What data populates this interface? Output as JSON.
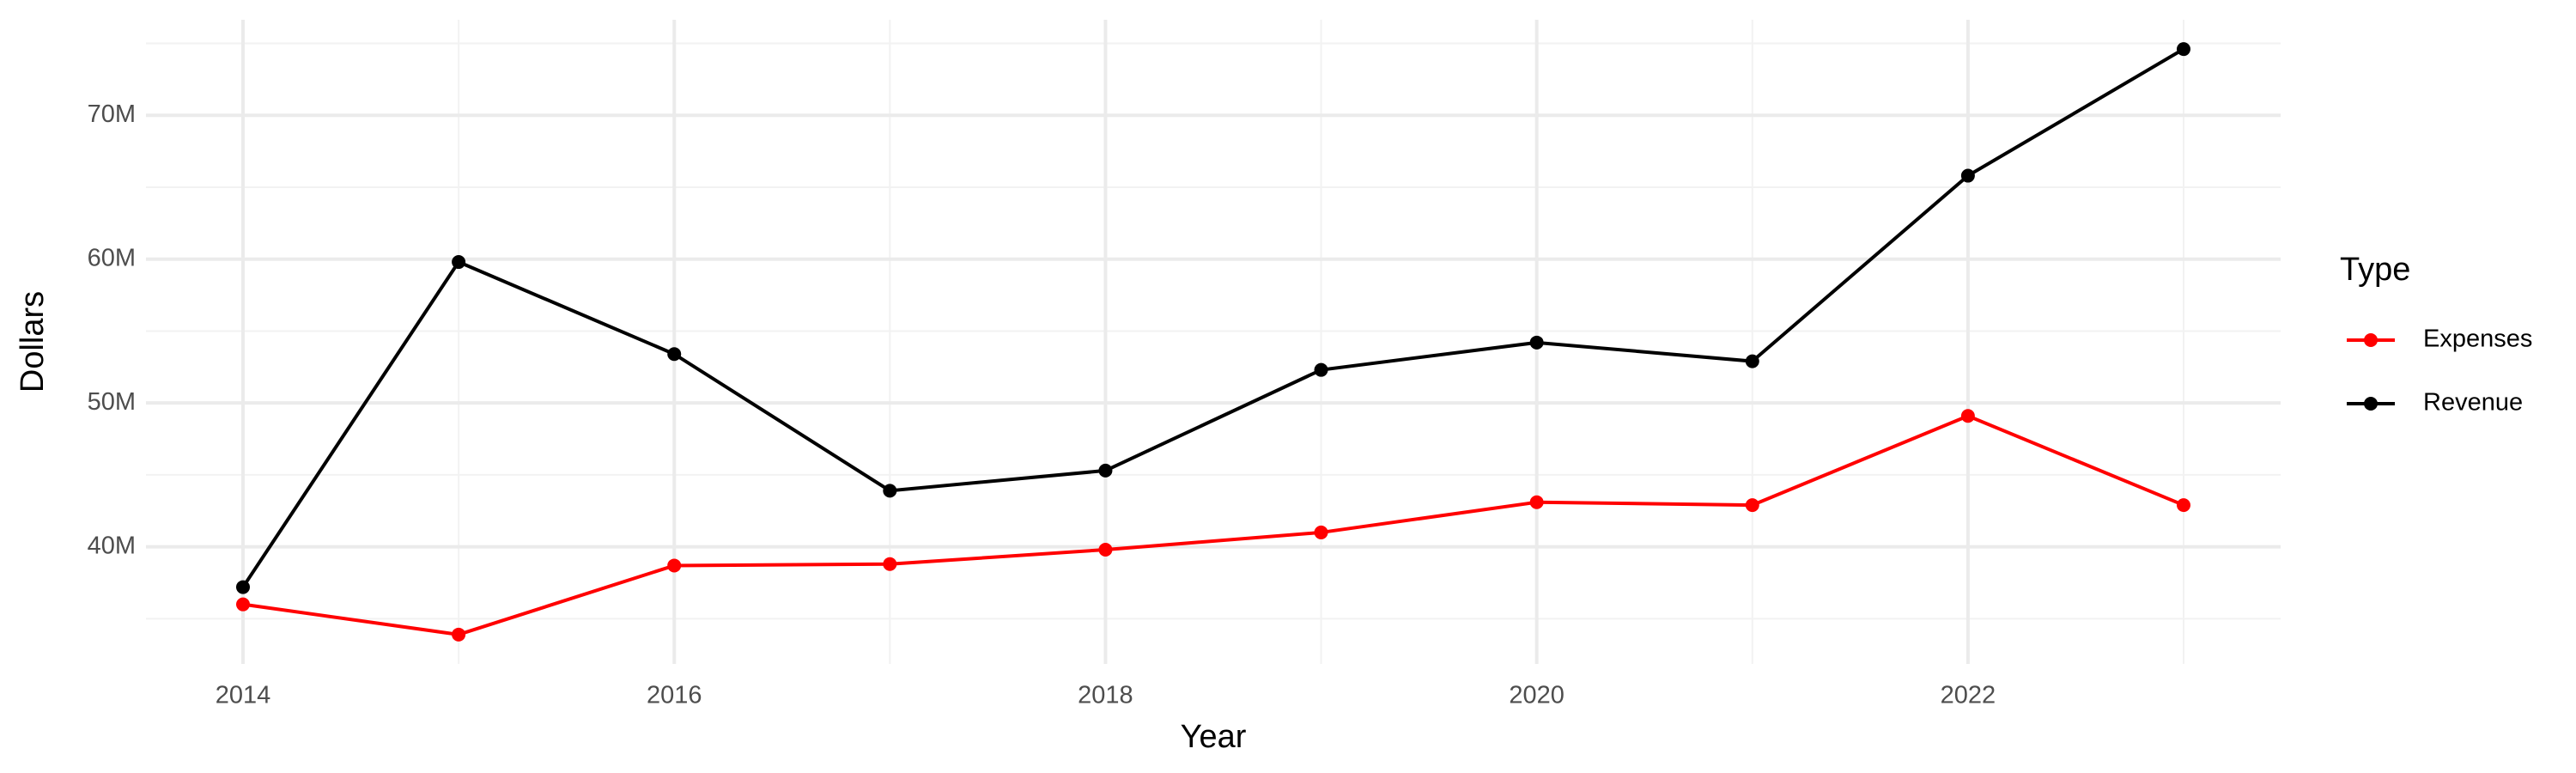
{
  "chart_data": {
    "type": "line",
    "x_label": "Year",
    "y_label": "Dollars",
    "legend_title": "Type",
    "x": [
      2014,
      2015,
      2016,
      2017,
      2018,
      2019,
      2020,
      2021,
      2022,
      2023
    ],
    "series": [
      {
        "name": "Expenses",
        "color": "#ff0000",
        "values": [
          36000000,
          33900000,
          38700000,
          38800000,
          39800000,
          41000000,
          43100000,
          42900000,
          49100000,
          42900000
        ]
      },
      {
        "name": "Revenue",
        "color": "#000000",
        "values": [
          37200000,
          59800000,
          53400000,
          43900000,
          45300000,
          52300000,
          54200000,
          52900000,
          65800000,
          74600000
        ]
      }
    ],
    "xlim": [
      2013.55,
      2023.45
    ],
    "xticks": [
      2014,
      2016,
      2018,
      2020,
      2022
    ],
    "ylim": [
      31860000,
      76640000
    ],
    "yticks": [
      {
        "value": 40000000,
        "label": "40M"
      },
      {
        "value": 50000000,
        "label": "50M"
      },
      {
        "value": 60000000,
        "label": "60M"
      },
      {
        "value": 70000000,
        "label": "70M"
      }
    ],
    "grid": true,
    "legend": "right"
  }
}
